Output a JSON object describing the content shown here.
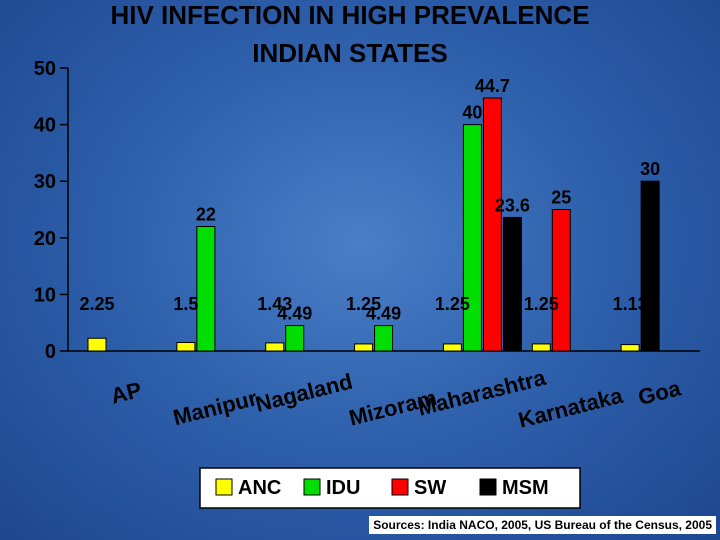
{
  "chart_data": {
    "type": "bar",
    "title_lines": [
      "HIV INFECTION IN HIGH PREVALENCE",
      "INDIAN STATES"
    ],
    "xlabel": "",
    "ylabel": "",
    "ylim": [
      0,
      50
    ],
    "y_ticks": [
      "0",
      "10",
      "20",
      "30",
      "40",
      "50"
    ],
    "grid": false,
    "legend_position": "bottom",
    "categories": [
      "AP",
      "Manipur",
      "Nagaland",
      "Mizoram",
      "Maharashtra",
      "Karnataka",
      "Goa"
    ],
    "series": [
      {
        "name": "ANC",
        "color": "#ffff00",
        "values": [
          2.25,
          1.5,
          1.43,
          1.25,
          1.25,
          1.25,
          1.13
        ],
        "labels": [
          "2.25",
          "1.5",
          "1.43",
          "1.25",
          "1.25",
          "1.25",
          "1.13"
        ]
      },
      {
        "name": "IDU",
        "color": "#00dd00",
        "values": [
          null,
          22,
          4.49,
          4.49,
          40,
          null,
          null
        ],
        "labels": [
          null,
          "22",
          "4.49",
          "4.49",
          "40",
          null,
          null
        ]
      },
      {
        "name": "SW",
        "color": "#ff0000",
        "values": [
          null,
          null,
          null,
          null,
          44.7,
          25,
          null
        ],
        "labels": [
          null,
          null,
          null,
          null,
          "44.7",
          "25",
          null
        ]
      },
      {
        "name": "MSM",
        "color": "#000000",
        "values": [
          null,
          null,
          null,
          null,
          23.6,
          null,
          30
        ],
        "labels": [
          null,
          null,
          null,
          null,
          "23.6",
          null,
          "30"
        ]
      }
    ]
  },
  "source_note": "Sources: India NACO, 2005, US Bureau of the Census, 2005"
}
